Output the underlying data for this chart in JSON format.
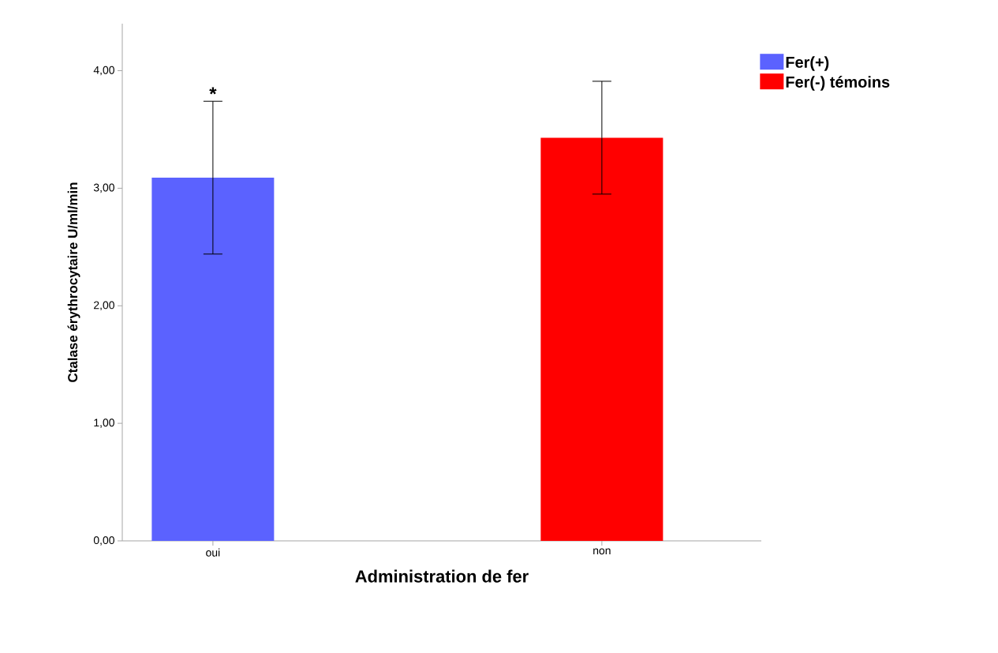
{
  "chart_data": {
    "type": "bar",
    "xlabel": "Administration de fer",
    "ylabel": "Ctalase érythrocytaire U/ml/min",
    "categories": [
      "oui",
      "non"
    ],
    "series": [
      {
        "name": "Fer(+)",
        "color": "#5b62ff",
        "values": [
          3.09,
          null
        ],
        "errors": [
          0.65,
          null
        ]
      },
      {
        "name": "Fer(-) témoins",
        "color": "#ff0000",
        "values": [
          null,
          3.43
        ],
        "errors": [
          null,
          0.48
        ]
      }
    ],
    "ylim": [
      0,
      4.4
    ],
    "yticks": [
      {
        "value": 0,
        "label": "0,00"
      },
      {
        "value": 1,
        "label": "1,00"
      },
      {
        "value": 2,
        "label": "2,00"
      },
      {
        "value": 3,
        "label": "3,00"
      },
      {
        "value": 4,
        "label": "4,00"
      }
    ],
    "legend": "top right",
    "annotations": [
      "*"
    ]
  }
}
